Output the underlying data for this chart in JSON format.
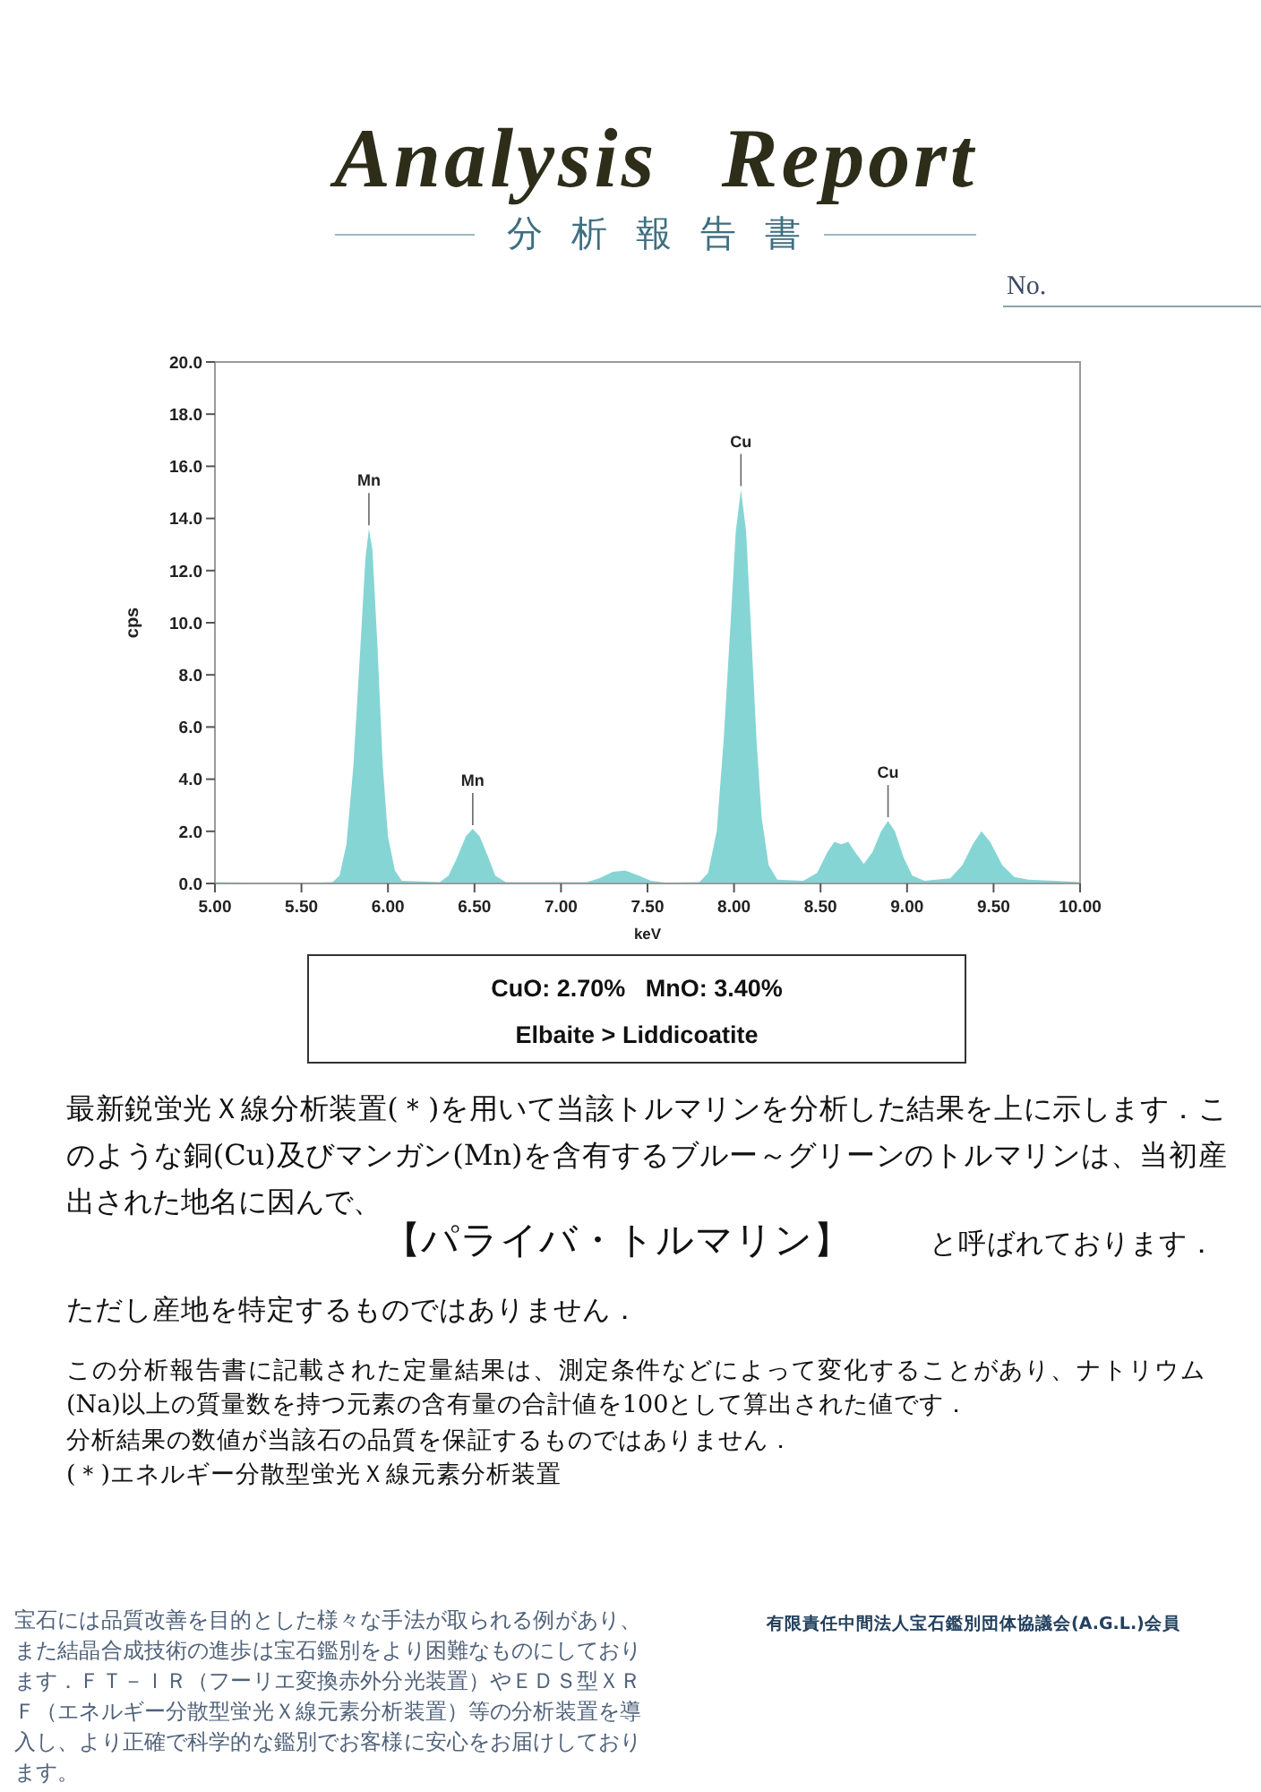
{
  "chart_data": {
    "type": "area",
    "title": "Analysis Report",
    "subtitle": "分析報告書",
    "xlabel": "keV",
    "ylabel": "cps",
    "color": "#86d5d5",
    "x": [
      5.0,
      5.5,
      5.68,
      5.72,
      5.76,
      5.8,
      5.84,
      5.87,
      5.89,
      5.91,
      5.94,
      5.97,
      6.0,
      6.04,
      6.08,
      6.3,
      6.35,
      6.4,
      6.45,
      6.49,
      6.53,
      6.58,
      6.62,
      6.68,
      7.15,
      7.22,
      7.3,
      7.37,
      7.45,
      7.52,
      7.6,
      7.8,
      7.85,
      7.9,
      7.94,
      7.98,
      8.01,
      8.04,
      8.07,
      8.1,
      8.13,
      8.16,
      8.2,
      8.25,
      8.4,
      8.48,
      8.54,
      8.58,
      8.62,
      8.66,
      8.7,
      8.75,
      8.8,
      8.85,
      8.89,
      8.93,
      8.98,
      9.03,
      9.1,
      9.25,
      9.32,
      9.38,
      9.43,
      9.48,
      9.55,
      9.62,
      9.7,
      9.85,
      10.0
    ],
    "values": [
      0.05,
      0.02,
      0.05,
      0.3,
      1.5,
      4.5,
      9.0,
      12.5,
      13.6,
      12.8,
      9.0,
      4.5,
      1.8,
      0.5,
      0.1,
      0.05,
      0.3,
      1.0,
      1.8,
      2.1,
      1.8,
      1.0,
      0.3,
      0.05,
      0.05,
      0.2,
      0.45,
      0.5,
      0.3,
      0.1,
      0.03,
      0.05,
      0.4,
      2.0,
      5.5,
      10.0,
      13.5,
      15.1,
      13.5,
      9.5,
      5.5,
      2.5,
      0.7,
      0.15,
      0.1,
      0.4,
      1.2,
      1.6,
      1.5,
      1.6,
      1.2,
      0.75,
      1.2,
      2.0,
      2.4,
      2.0,
      1.0,
      0.3,
      0.1,
      0.2,
      0.7,
      1.5,
      2.0,
      1.6,
      0.7,
      0.25,
      0.15,
      0.1,
      0.05
    ],
    "xlim": [
      5,
      10
    ],
    "xticks": [
      {
        "value": 5,
        "label": "5.00"
      },
      {
        "value": 5.5,
        "label": "5.50"
      },
      {
        "value": 6,
        "label": "6.00"
      },
      {
        "value": 6.5,
        "label": "6.50"
      },
      {
        "value": 7,
        "label": "7.00"
      },
      {
        "value": 7.5,
        "label": "7.50"
      },
      {
        "value": 8,
        "label": "8.00"
      },
      {
        "value": 8.5,
        "label": "8.50"
      },
      {
        "value": 9,
        "label": "9.00"
      },
      {
        "value": 9.5,
        "label": "9.50"
      },
      {
        "value": 10,
        "label": "10.00"
      }
    ],
    "ylim": [
      0,
      20
    ],
    "yticks": [
      {
        "value": 0,
        "label": "0.0"
      },
      {
        "value": 2,
        "label": "2.0"
      },
      {
        "value": 4,
        "label": "4.0"
      },
      {
        "value": 6,
        "label": "6.0"
      },
      {
        "value": 8,
        "label": "8.0"
      },
      {
        "value": 10,
        "label": "10.0"
      },
      {
        "value": 12,
        "label": "12.0"
      },
      {
        "value": 14,
        "label": "14.0"
      },
      {
        "value": 16,
        "label": "16.0"
      },
      {
        "value": 18,
        "label": "18.0"
      },
      {
        "value": 20,
        "label": "20.0"
      }
    ],
    "annotations": [
      {
        "text": "Mn",
        "x": 5.89,
        "y": 13.6
      },
      {
        "text": "Mn",
        "x": 6.49,
        "y": 2.1
      },
      {
        "text": "Cu",
        "x": 8.04,
        "y": 15.1
      },
      {
        "text": "Cu",
        "x": 8.89,
        "y": 2.4
      },
      "No.",
      "CuO: 2.70%   MnO: 3.40%",
      "Elbaite > Liddicoatite",
      "最新鋭蛍光Ｘ線分析装置(＊)を用いて当該トルマリンを分析した結果を上に示します．このような銅(Cu)及びマンガン(Mn)を含有するブルー～グリーンのトルマリンは、当初産出された地名に因んで、",
      "【パライバ・トルマリン】",
      "と呼ばれております．",
      "ただし産地を特定するものではありません．",
      "この分析報告書に記載された定量結果は、測定条件などによって変化することがあり、ナトリウム(Na)以上の質量数を持つ元素の含有量の合計値を100として算出された値です．",
      "分析結果の数値が当該石の品質を保証するものではありません．",
      "(＊)エネルギー分散型蛍光Ｘ線元素分析装置",
      "宝石には品質改善を目的とした様々な手法が取られる例があり、また結晶合成技術の進歩は宝石鑑別をより困難なものにしております．ＦＴ－ＩＲ（フーリエ変換赤外分光装置）やＥＤＳ型ＸＲＦ（エネルギー分散型蛍光Ｘ線元素分析装置）等の分析装置を導入し、より正確で科学的な鑑別でお客様に安心をお届けしております。",
      "有限責任中間法人宝石鑑別団体協議会(A.G.L.)会員"
    ]
  }
}
